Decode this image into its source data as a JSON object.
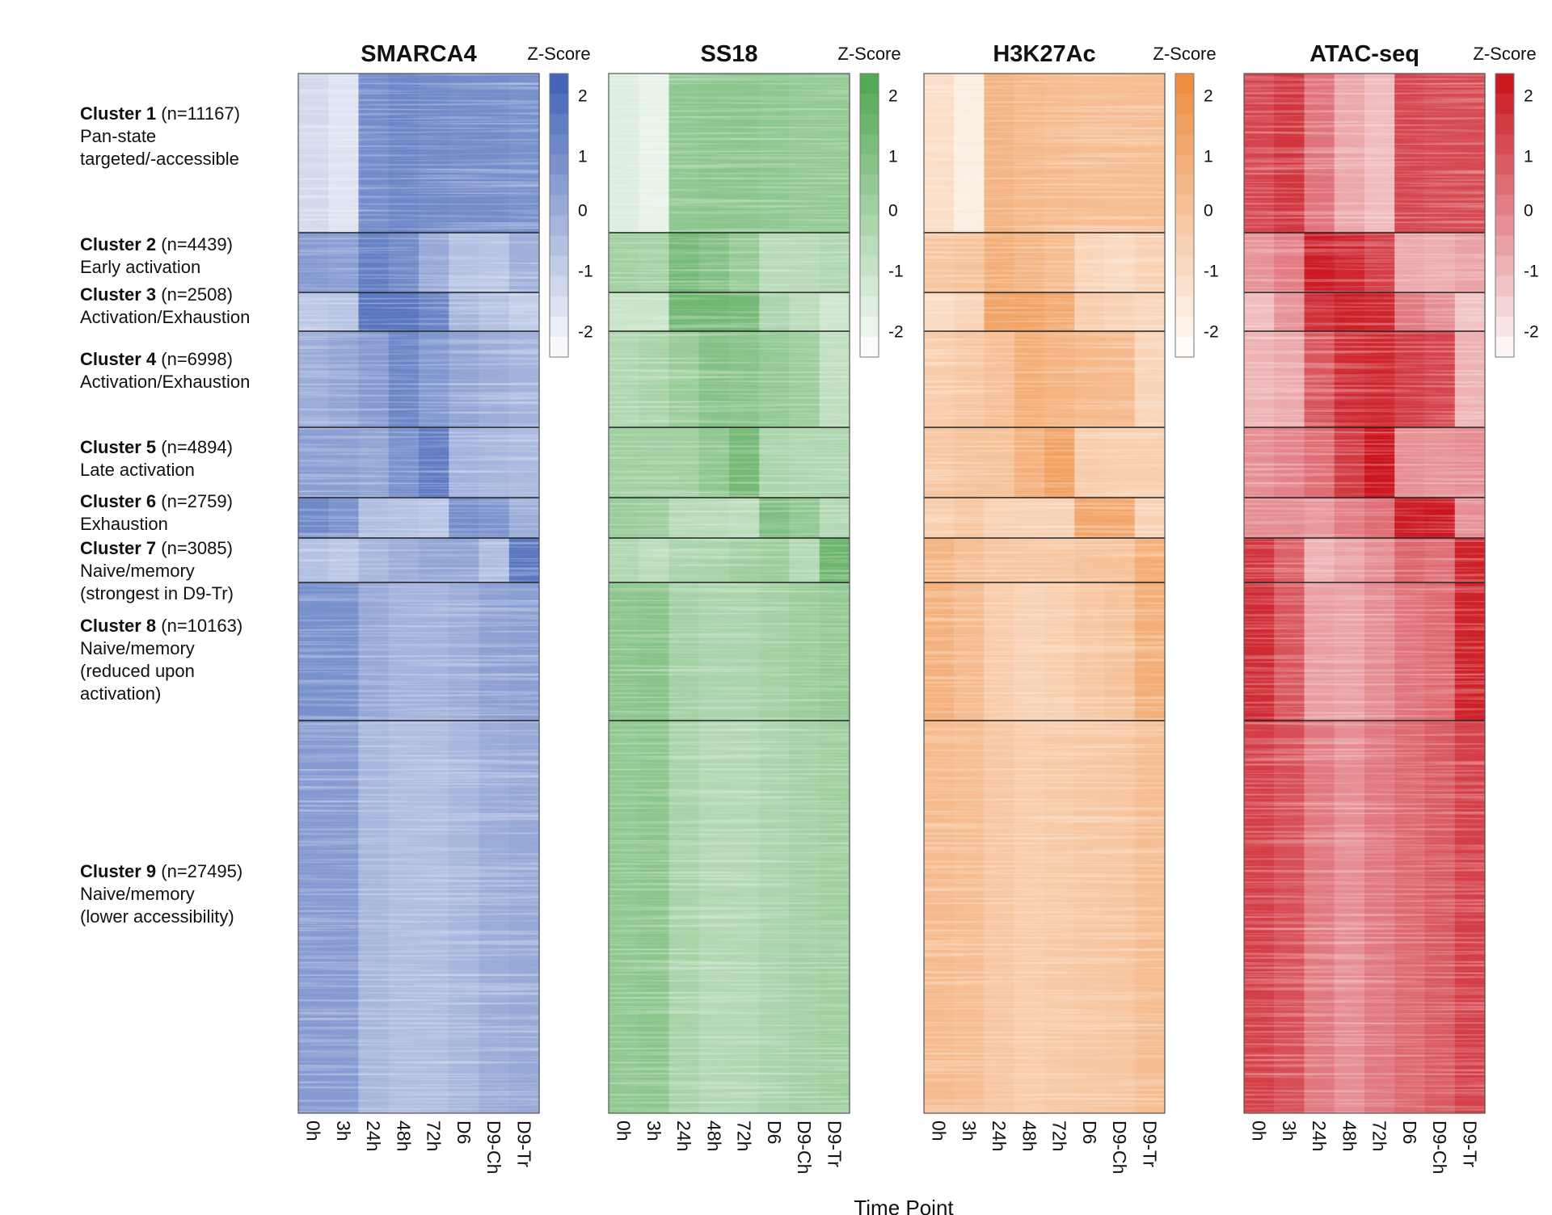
{
  "figure": {
    "x_axis_title": "Time Point",
    "colorbar_title": "Z-Score"
  },
  "chart_data": {
    "type": "heatmap",
    "time_points": [
      "0h",
      "3h",
      "24h",
      "48h",
      "72h",
      "D6",
      "D9-Ch",
      "D9-Tr"
    ],
    "z_ticks": [
      "2",
      "1",
      "0",
      "-1",
      "-2"
    ],
    "zlim": [
      -2.3,
      2.3
    ],
    "clusters": [
      {
        "id": "Cluster 1",
        "n": "(n=11167)",
        "desc": [
          "Pan-state",
          "targeted/-accessible"
        ]
      },
      {
        "id": "Cluster 2",
        "n": "(n=4439)",
        "desc": [
          "Early activation"
        ]
      },
      {
        "id": "Cluster 3",
        "n": "(n=2508)",
        "desc": [
          "Activation/Exhaustion"
        ]
      },
      {
        "id": "Cluster 4",
        "n": "(n=6998)",
        "desc": [
          "Activation/Exhaustion"
        ]
      },
      {
        "id": "Cluster 5",
        "n": "(n=4894)",
        "desc": [
          "Late activation"
        ]
      },
      {
        "id": "Cluster 6",
        "n": "(n=2759)",
        "desc": [
          "Exhaustion"
        ]
      },
      {
        "id": "Cluster 7",
        "n": "(n=3085)",
        "desc": [
          "Naive/memory",
          "(strongest in D9-Tr)"
        ]
      },
      {
        "id": "Cluster 8",
        "n": "(n=10163)",
        "desc": [
          "Naive/memory",
          "(reduced upon",
          "activation)"
        ]
      },
      {
        "id": "Cluster 9",
        "n": "(n=27495)",
        "desc": [
          "Naive/memory",
          "(lower accessibility)"
        ]
      }
    ],
    "panels": [
      {
        "title": "SMARCA4",
        "color_high": "#3d5fb5",
        "color_low": "#ffffff",
        "values": [
          [
            -1.2,
            -1.5,
            1.0,
            1.2,
            1.1,
            1.0,
            1.0,
            0.9
          ],
          [
            0.6,
            0.5,
            1.4,
            1.1,
            0.2,
            -0.5,
            -0.6,
            0.0
          ],
          [
            -0.7,
            -0.6,
            1.7,
            1.7,
            1.3,
            -0.2,
            -0.5,
            -0.8
          ],
          [
            0.1,
            0.3,
            0.6,
            1.2,
            0.7,
            0.3,
            0.1,
            -0.1
          ],
          [
            0.5,
            0.5,
            0.3,
            0.9,
            1.5,
            -0.1,
            -0.2,
            -0.3
          ],
          [
            1.1,
            0.8,
            -0.4,
            -0.5,
            -0.6,
            1.0,
            0.8,
            0.1
          ],
          [
            -0.5,
            -0.7,
            -0.2,
            0.1,
            0.3,
            0.3,
            -0.4,
            1.6
          ],
          [
            0.9,
            0.9,
            0.2,
            -0.1,
            -0.1,
            0.1,
            0.4,
            0.5
          ],
          [
            0.6,
            0.6,
            -0.2,
            -0.4,
            -0.4,
            -0.2,
            0.1,
            0.2
          ]
        ]
      },
      {
        "title": "SS18",
        "color_high": "#4ea64f",
        "color_low": "#ffffff",
        "values": [
          [
            -1.4,
            -1.7,
            0.6,
            0.7,
            0.7,
            0.6,
            0.5,
            0.5
          ],
          [
            0.2,
            0.1,
            1.3,
            1.0,
            0.5,
            -0.4,
            -0.4,
            -0.2
          ],
          [
            -0.9,
            -0.9,
            1.4,
            1.4,
            1.3,
            -0.1,
            -0.5,
            -1.0
          ],
          [
            -0.2,
            0.0,
            0.4,
            0.9,
            0.8,
            0.5,
            0.3,
            -0.6
          ],
          [
            0.2,
            0.2,
            0.2,
            0.6,
            1.3,
            -0.1,
            -0.2,
            -0.2
          ],
          [
            0.4,
            0.3,
            -0.4,
            -0.4,
            -0.5,
            1.0,
            0.6,
            -0.3
          ],
          [
            -0.2,
            -0.5,
            -0.1,
            0.0,
            0.2,
            0.3,
            -0.3,
            1.5
          ],
          [
            0.7,
            0.8,
            0.1,
            -0.1,
            -0.1,
            0.1,
            0.3,
            0.5
          ],
          [
            0.6,
            0.7,
            0.0,
            -0.3,
            -0.3,
            -0.1,
            0.1,
            0.2
          ]
        ]
      },
      {
        "title": "H3K27Ac",
        "color_high": "#ee8a3c",
        "color_low": "#ffffff",
        "values": [
          [
            -1.0,
            -1.6,
            0.7,
            0.5,
            0.4,
            0.3,
            0.3,
            0.3
          ],
          [
            0.0,
            0.1,
            0.9,
            0.6,
            0.3,
            -0.6,
            -0.8,
            -0.5
          ],
          [
            -0.9,
            -0.6,
            1.3,
            1.4,
            1.1,
            -0.3,
            -0.5,
            -0.7
          ],
          [
            -0.3,
            -0.1,
            0.2,
            0.9,
            0.7,
            0.5,
            0.4,
            -0.6
          ],
          [
            -0.1,
            0.1,
            0.1,
            0.8,
            1.4,
            -0.3,
            -0.4,
            -0.4
          ],
          [
            -0.4,
            -0.1,
            -0.5,
            -0.5,
            -0.5,
            1.2,
            1.2,
            -0.5
          ],
          [
            0.6,
            0.2,
            -0.1,
            -0.1,
            -0.1,
            0.1,
            0.1,
            0.9
          ],
          [
            0.8,
            0.4,
            -0.3,
            -0.5,
            -0.4,
            -0.1,
            0.1,
            0.9
          ],
          [
            0.4,
            0.3,
            -0.1,
            -0.3,
            -0.2,
            -0.1,
            0.0,
            0.3
          ]
        ]
      },
      {
        "title": "ATAC-seq",
        "color_high": "#c9101a",
        "color_low": "#ffffff",
        "values": [
          [
            1.3,
            1.6,
            0.4,
            -0.6,
            -1.0,
            1.3,
            1.2,
            1.2
          ],
          [
            -0.2,
            0.2,
            2.1,
            1.9,
            1.4,
            -0.6,
            -0.7,
            -0.5
          ],
          [
            -1.0,
            -0.2,
            1.7,
            2.0,
            1.9,
            0.3,
            -0.1,
            -1.1
          ],
          [
            -0.8,
            -0.6,
            1.0,
            1.8,
            1.9,
            1.5,
            1.3,
            -0.8
          ],
          [
            -0.1,
            0.1,
            0.5,
            1.5,
            2.2,
            -0.1,
            -0.2,
            -0.1
          ],
          [
            -0.1,
            -0.1,
            -0.3,
            0.2,
            0.5,
            2.1,
            2.2,
            -0.1
          ],
          [
            1.6,
            0.8,
            -0.8,
            -0.5,
            -0.1,
            0.7,
            0.5,
            2.0
          ],
          [
            1.8,
            1.0,
            -0.4,
            -0.5,
            -0.1,
            0.4,
            0.6,
            2.0
          ],
          [
            1.4,
            1.1,
            0.3,
            -0.1,
            0.3,
            0.6,
            0.9,
            1.4
          ]
        ]
      }
    ]
  }
}
